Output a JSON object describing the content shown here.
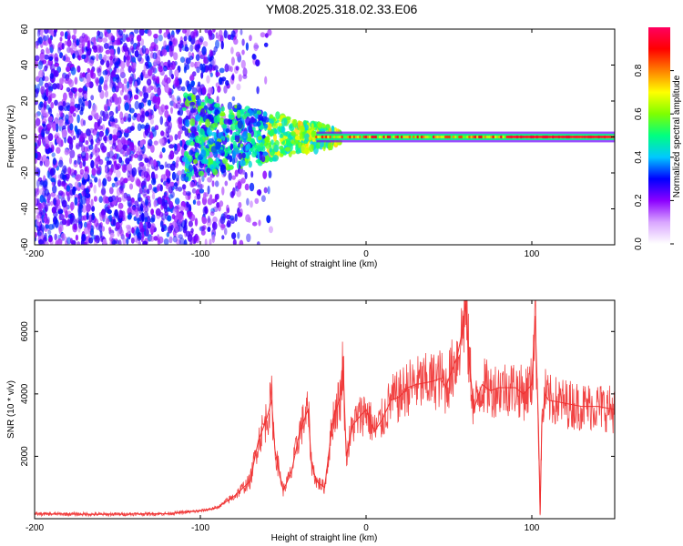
{
  "title": "YM08.2025.318.02.33.E06",
  "chart_data": [
    {
      "type": "heatmap",
      "xlabel": "Height of straight line (km)",
      "ylabel": "Frequency (Hz)",
      "xlim": [
        -200,
        150
      ],
      "ylim": [
        -60,
        60
      ],
      "xticks": [
        -200,
        -100,
        0,
        100
      ],
      "yticks": [
        60,
        40,
        20,
        0,
        -20,
        -40,
        -60
      ],
      "colorbar": {
        "label": "Normalized spectral amplitude",
        "range": [
          0,
          1
        ],
        "ticks": [
          0.0,
          0.2,
          0.4,
          0.6,
          0.8
        ],
        "tick_labels": [
          "0.0",
          "0.2",
          "0.4",
          "0.6",
          "0.8"
        ],
        "colors": [
          "#ffffff",
          "#d9a6ff",
          "#8c00ff",
          "#0000ff",
          "#00c8ff",
          "#00ff80",
          "#7fff00",
          "#ffff00",
          "#ff8000",
          "#ff0000",
          "#ff0060"
        ]
      },
      "grid": false
    },
    {
      "type": "line",
      "xlabel": "Height of straight line (km)",
      "ylabel": "SNR (10 * v/v)",
      "xlim": [
        -200,
        150
      ],
      "ylim": [
        0,
        7000
      ],
      "xticks": [
        -200,
        -100,
        0,
        100
      ],
      "yticks": [
        2000,
        4000,
        6000
      ],
      "color": "#f03030",
      "grid": false,
      "series": [
        {
          "x": [
            -200,
            -180,
            -160,
            -140,
            -120,
            -100,
            -90,
            -80,
            -70,
            -65,
            -60,
            -57,
            -55,
            -50,
            -45,
            -40,
            -35,
            -33,
            -30,
            -25,
            -20,
            -15,
            -14,
            -12,
            -8,
            -5,
            0,
            5,
            10,
            15,
            20,
            25,
            30,
            40,
            45,
            48,
            50,
            55,
            58,
            60,
            62,
            65,
            70,
            75,
            80,
            90,
            95,
            100,
            102,
            104,
            105,
            106,
            108,
            110,
            120,
            130,
            140,
            150
          ],
          "y": [
            150,
            150,
            140,
            150,
            160,
            250,
            350,
            700,
            1200,
            2500,
            3200,
            3800,
            2200,
            900,
            1500,
            2800,
            3500,
            1800,
            1200,
            1000,
            3200,
            4000,
            5200,
            2000,
            3000,
            3200,
            3500,
            2800,
            3200,
            3800,
            3900,
            4200,
            4300,
            4400,
            4500,
            4200,
            4500,
            5200,
            6000,
            6900,
            5200,
            3500,
            4300,
            4100,
            4200,
            4200,
            4000,
            4300,
            6500,
            3000,
            150,
            3000,
            4000,
            3800,
            3700,
            3600,
            3600,
            3500
          ]
        }
      ]
    }
  ]
}
